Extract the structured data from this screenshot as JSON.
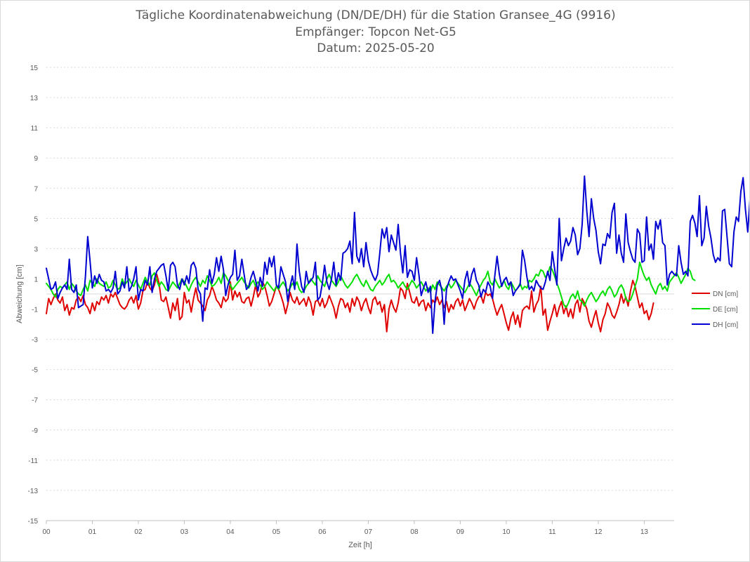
{
  "chart_data": {
    "type": "line",
    "title": "Tägliche Koordinatenabweichung (DN/DE/DH) für die Station Gransee_4G (9916)",
    "subtitle": "Empfänger: Topcon Net-G5",
    "date_line": "Datum: 2025-05-20",
    "xlabel": "Zeit [h]",
    "ylabel": "Abweichung [cm]",
    "xlim": [
      0,
      13.65
    ],
    "ylim": [
      -15,
      15
    ],
    "x_ticks": [
      {
        "value": 0,
        "label": "00"
      },
      {
        "value": 1,
        "label": "01"
      },
      {
        "value": 2,
        "label": "02"
      },
      {
        "value": 3,
        "label": "03"
      },
      {
        "value": 4,
        "label": "04"
      },
      {
        "value": 5,
        "label": "05"
      },
      {
        "value": 6,
        "label": "06"
      },
      {
        "value": 7,
        "label": "07"
      },
      {
        "value": 8,
        "label": "08"
      },
      {
        "value": 9,
        "label": "09"
      },
      {
        "value": 10,
        "label": "10"
      },
      {
        "value": 11,
        "label": "11"
      },
      {
        "value": 12,
        "label": "12"
      },
      {
        "value": 13,
        "label": "13"
      }
    ],
    "y_ticks": [
      15,
      13,
      11,
      9,
      7,
      5,
      3,
      1,
      -1,
      -3,
      -5,
      -7,
      -9,
      -11,
      -13,
      -15
    ],
    "grid": "horizontal dotted",
    "legend_position": "right",
    "x_step_hours": 0.05,
    "series": [
      {
        "name": "DN [cm]",
        "color": "#e00000",
        "values": [
          -1.3,
          -0.3,
          -0.7,
          -0.3,
          0.0,
          -0.4,
          -0.6,
          -0.2,
          -1.1,
          -0.7,
          -1.4,
          -0.9,
          -1.0,
          -0.4,
          -0.2,
          -0.5,
          -0.1,
          -0.7,
          -0.9,
          -1.3,
          -0.6,
          -1.1,
          -0.5,
          -0.7,
          -0.2,
          -0.4,
          -0.1,
          -0.6,
          0.0,
          -0.2,
          0.1,
          -0.3,
          -0.7,
          -0.9,
          -1.0,
          -0.8,
          -0.4,
          -0.2,
          -0.6,
          -0.1,
          -1.0,
          -0.6,
          0.2,
          0.3,
          0.8,
          0.4,
          0.2,
          0.6,
          1.3,
          0.7,
          -0.4,
          -0.5,
          -0.2,
          -0.9,
          -1.6,
          -0.6,
          -1.1,
          -0.3,
          -1.7,
          -1.5,
          0.1,
          -0.6,
          -0.4,
          -1.2,
          -0.3,
          0.4,
          -0.4,
          -0.6,
          -0.8,
          -1.1,
          -0.4,
          -0.1,
          0.5,
          0.1,
          -0.4,
          -0.6,
          -0.9,
          -0.2,
          -0.5,
          -0.3,
          0.8,
          -0.4,
          0.2,
          -0.2,
          0.1,
          -0.5,
          -0.6,
          -0.3,
          -0.2,
          -0.8,
          -0.2,
          0.6,
          -0.2,
          0.1,
          0.8,
          0.5,
          -0.1,
          -0.8,
          -0.5,
          0.0,
          0.5,
          0.3,
          -0.1,
          -0.6,
          -1.3,
          -0.7,
          0.1,
          -0.4,
          -0.6,
          -0.2,
          -0.7,
          -0.5,
          -0.3,
          -0.8,
          -0.2,
          -0.6,
          -1.4,
          -0.5,
          -0.4,
          -0.8,
          -0.3,
          -0.9,
          -0.6,
          -0.1,
          -0.5,
          -0.9,
          -1.6,
          -0.8,
          -0.3,
          -0.4,
          -0.9,
          -0.6,
          -1.2,
          -0.3,
          -0.8,
          -0.2,
          -0.5,
          -1.1,
          -0.6,
          -0.3,
          -0.9,
          -1.3,
          -0.4,
          -0.2,
          -0.7,
          -0.5,
          -1.2,
          -0.7,
          -2.5,
          -1.0,
          -0.4,
          -0.9,
          -1.2,
          -0.6,
          0.4,
          0.2,
          -0.3,
          0.7,
          0.1,
          -0.5,
          -0.6,
          -0.2,
          -0.8,
          -0.5,
          -0.4,
          -1.1,
          -0.6,
          -0.9,
          -0.4,
          -0.6,
          -0.2,
          -0.7,
          -0.4,
          -0.9,
          -0.5,
          -1.2,
          -0.7,
          -1.0,
          -0.5,
          -0.3,
          -0.8,
          -0.4,
          -1.1,
          -0.7,
          -0.3,
          -0.6,
          -1.0,
          -0.5,
          -0.2,
          -0.1,
          -0.6,
          0.1,
          -0.1,
          0.0,
          -0.3,
          -0.9,
          -1.4,
          -1.0,
          -0.7,
          -1.3,
          -1.9,
          -2.4,
          -1.6,
          -1.2,
          -2.0,
          -1.4,
          -2.2,
          -1.1,
          -0.9,
          -0.8,
          -1.0,
          0.2,
          -1.2,
          -0.7,
          -0.4,
          0.5,
          -1.4,
          -1.0,
          -2.4,
          -1.8,
          -1.3,
          -0.7,
          -1.5,
          -0.9,
          -0.5,
          -1.3,
          -0.8,
          -1.5,
          -1.0,
          -1.6,
          -0.7,
          -0.4,
          -1.2,
          -0.3,
          -0.6,
          -1.0,
          -1.8,
          -2.2,
          -1.6,
          -1.1,
          -1.9,
          -2.5,
          -1.7,
          -1.3,
          -0.6,
          -0.9,
          -1.4,
          -1.6,
          -1.2,
          -0.7,
          0.0,
          -0.6,
          -0.2,
          -0.8,
          0.2,
          0.9,
          0.5,
          -0.2,
          -0.9,
          -0.6,
          -1.3,
          -1.1,
          -1.7,
          -1.3,
          -0.6
        ]
      },
      {
        "name": "DE [cm]",
        "color": "#00e000",
        "values": [
          0.7,
          0.5,
          0.3,
          0.0,
          -0.2,
          0.3,
          0.5,
          0.4,
          0.6,
          0.8,
          0.3,
          0.7,
          0.5,
          0.2,
          0.0,
          -0.1,
          0.3,
          0.6,
          0.2,
          0.9,
          0.7,
          0.5,
          1.0,
          0.7,
          0.6,
          0.5,
          0.8,
          0.4,
          0.5,
          0.9,
          0.6,
          0.3,
          0.4,
          1.0,
          0.6,
          0.8,
          1.0,
          0.7,
          0.5,
          0.9,
          0.6,
          0.3,
          0.7,
          1.1,
          0.8,
          0.6,
          1.2,
          1.4,
          0.9,
          0.5,
          0.8,
          0.6,
          0.3,
          0.2,
          0.5,
          0.8,
          0.6,
          0.4,
          0.7,
          1.0,
          0.8,
          0.5,
          0.2,
          0.6,
          0.9,
          1.1,
          0.8,
          0.5,
          0.9,
          0.7,
          1.2,
          0.9,
          0.5,
          0.6,
          0.8,
          1.1,
          0.7,
          1.4,
          1.2,
          0.9,
          0.6,
          0.3,
          0.5,
          0.7,
          0.9,
          1.1,
          0.8,
          0.6,
          0.4,
          0.7,
          0.9,
          0.5,
          0.8,
          0.6,
          0.3,
          0.5,
          0.8,
          0.6,
          0.4,
          0.2,
          0.5,
          0.3,
          0.6,
          0.8,
          0.5,
          0.2,
          0.4,
          0.7,
          0.5,
          0.8,
          0.3,
          0.1,
          0.2,
          0.5,
          0.7,
          1.0,
          0.8,
          0.6,
          1.2,
          0.9,
          0.7,
          0.5,
          1.0,
          1.3,
          0.9,
          0.7,
          0.5,
          0.8,
          1.2,
          0.9,
          0.6,
          0.4,
          0.6,
          0.8,
          1.1,
          1.3,
          1.0,
          0.7,
          0.5,
          0.9,
          0.6,
          0.3,
          0.2,
          0.5,
          0.7,
          0.9,
          0.6,
          0.8,
          1.1,
          1.3,
          0.8,
          0.9,
          0.7,
          0.4,
          0.6,
          0.8,
          0.5,
          0.3,
          0.6,
          0.9,
          0.7,
          0.4,
          0.6,
          0.8,
          0.5,
          0.2,
          0.4,
          0.1,
          0.6,
          0.3,
          0.8,
          0.6,
          0.4,
          0.2,
          0.5,
          0.7,
          0.4,
          0.6,
          0.9,
          0.7,
          0.5,
          0.3,
          0.1,
          0.4,
          0.7,
          0.5,
          0.2,
          -0.1,
          0.3,
          0.6,
          0.9,
          1.1,
          1.5,
          0.8,
          0.6,
          1.0,
          0.7,
          0.4,
          0.6,
          0.9,
          0.5,
          0.3,
          0.8,
          0.5,
          0.2,
          0.4,
          0.7,
          0.3,
          0.5,
          0.4,
          0.9,
          0.8,
          1.0,
          1.3,
          1.2,
          1.6,
          1.5,
          1.1,
          1.3,
          1.8,
          1.6,
          1.2,
          0.7,
          0.3,
          -0.2,
          -0.7,
          -0.9,
          -0.6,
          -0.2,
          0.0,
          -0.3,
          0.2,
          -0.4,
          -0.5,
          -0.8,
          -0.4,
          -0.1,
          0.1,
          -0.2,
          -0.5,
          -0.3,
          0.0,
          0.2,
          -0.1,
          0.3,
          0.5,
          0.2,
          -0.2,
          0.0,
          0.4,
          0.6,
          0.3,
          -0.3,
          -0.5,
          -0.4,
          0.0,
          0.5,
          1.0,
          2.1,
          1.6,
          1.2,
          0.9,
          1.1,
          0.6,
          0.3,
          0.0,
          0.5,
          0.7,
          0.3,
          0.5,
          0.2,
          0.8,
          1.0,
          1.2,
          1.4,
          1.1,
          0.7,
          1.0,
          1.3,
          1.7,
          1.5,
          1.0,
          0.9
        ]
      },
      {
        "name": "DH [cm]",
        "color": "#0000d0",
        "values": [
          1.7,
          1.0,
          0.3,
          0.4,
          0.8,
          -0.3,
          0.1,
          0.4,
          0.6,
          0.3,
          2.3,
          0.3,
          0.1,
          0.6,
          -0.9,
          -0.8,
          -0.7,
          1.2,
          3.8,
          2.2,
          0.4,
          1.2,
          0.7,
          1.3,
          0.9,
          0.8,
          0.2,
          0.3,
          0.1,
          0.4,
          1.5,
          0.0,
          0.2,
          0.8,
          0.4,
          1.8,
          0.2,
          0.5,
          1.0,
          1.8,
          -0.4,
          0.3,
          0.2,
          0.9,
          0.6,
          1.8,
          0.1,
          1.0,
          1.5,
          1.7,
          1.9,
          2.0,
          1.2,
          0.2,
          1.9,
          2.1,
          1.8,
          0.6,
          0.3,
          1.0,
          0.6,
          1.2,
          0.7,
          1.9,
          2.1,
          1.7,
          0.3,
          0.0,
          -1.8,
          0.4,
          0.3,
          1.6,
          0.7,
          1.3,
          2.4,
          1.5,
          2.5,
          1.6,
          -0.1,
          0.6,
          1.1,
          1.3,
          2.9,
          0.9,
          1.2,
          2.3,
          1.3,
          0.3,
          0.5,
          1.1,
          1.5,
          0.9,
          0.2,
          1.1,
          0.5,
          2.1,
          1.3,
          2.4,
          1.8,
          2.5,
          0.6,
          0.4,
          1.8,
          1.3,
          0.8,
          -0.5,
          0.5,
          1.2,
          0.3,
          3.3,
          1.5,
          0.5,
          0.1,
          1.5,
          0.7,
          0.9,
          1.1,
          2.1,
          -0.4,
          -0.2,
          0.7,
          1.9,
          0.8,
          0.3,
          1.0,
          2.1,
          0.6,
          1.4,
          0.9,
          2.7,
          2.8,
          3.0,
          3.5,
          2.0,
          5.4,
          2.5,
          2.1,
          3.0,
          1.8,
          3.4,
          2.2,
          1.6,
          1.2,
          0.9,
          1.3,
          2.7,
          4.3,
          3.7,
          4.4,
          2.8,
          3.9,
          3.4,
          2.9,
          4.6,
          2.7,
          1.4,
          3.2,
          1.1,
          1.6,
          1.5,
          0.9,
          2.4,
          1.3,
          -0.1,
          0.4,
          0.8,
          0.1,
          0.5,
          -2.6,
          -0.5,
          0.6,
          0.9,
          0.2,
          -2.0,
          0.3,
          0.8,
          1.2,
          0.9,
          1.0,
          0.6,
          0.2,
          -0.3,
          0.9,
          1.5,
          0.5,
          1.3,
          1.7,
          0.9,
          0.6,
          -0.2,
          0.3,
          0.1,
          0.8,
          0.5,
          -0.3,
          1.2,
          2.5,
          1.3,
          0.5,
          0.9,
          1.1,
          0.6,
          0.8,
          -0.1,
          0.2,
          0.4,
          0.6,
          2.9,
          2.2,
          1.1,
          0.3,
          0.5,
          0.2,
          0.9,
          0.6,
          0.4,
          0.3,
          0.8,
          1.5,
          0.9,
          2.8,
          1.7,
          0.6,
          5.0,
          2.2,
          3.0,
          3.7,
          3.2,
          3.5,
          4.4,
          3.9,
          2.6,
          3.0,
          4.6,
          7.8,
          5.5,
          3.8,
          6.3,
          5.0,
          4.2,
          2.8,
          2.0,
          3.3,
          3.2,
          4.0,
          3.7,
          5.4,
          6.0,
          2.7,
          3.9,
          2.7,
          2.1,
          5.3,
          3.4,
          2.8,
          2.3,
          2.1,
          4.3,
          4.0,
          2.1,
          2.2,
          5.1,
          2.9,
          3.3,
          2.3,
          4.8,
          4.3,
          4.9,
          3.4,
          3.2,
          0.6,
          1.3,
          1.5,
          1.3,
          1.2,
          3.2,
          2.1,
          1.3,
          1.5,
          1.2,
          4.8,
          5.2,
          4.7,
          3.8,
          6.5,
          3.2,
          3.7,
          5.8,
          4.5,
          3.7,
          2.6,
          2.1,
          2.4,
          2.2,
          5.5,
          5.6,
          3.8,
          2.0,
          1.8,
          4.1,
          5.1,
          4.8,
          6.8,
          7.7,
          5.6,
          4.1,
          6.3,
          6.2,
          5.6,
          6.0,
          5.4,
          3.5,
          4.3,
          3.9
        ]
      }
    ]
  }
}
